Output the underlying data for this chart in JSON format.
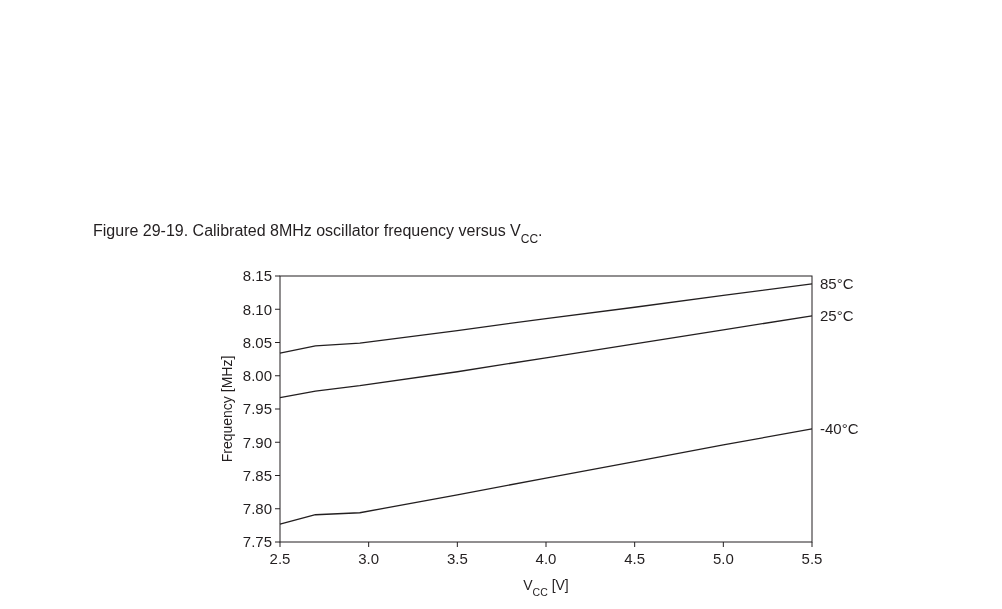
{
  "chart_data": {
    "type": "line",
    "title": "Figure 29-19. Calibrated 8MHz oscillator frequency versus V$_{CC}$.",
    "xlabel": "V$_{CC}$ [V]",
    "ylabel": "Frequency [MHz]",
    "xlim": [
      2.5,
      5.5
    ],
    "xticks": [
      {
        "value": 2.5,
        "label": "2.5"
      },
      {
        "value": 3,
        "label": "3.0"
      },
      {
        "value": 3.5,
        "label": "3.5"
      },
      {
        "value": 4,
        "label": "4.0"
      },
      {
        "value": 4.5,
        "label": "4.5"
      },
      {
        "value": 5,
        "label": "5.0"
      },
      {
        "value": 5.5,
        "label": "5.5"
      }
    ],
    "ylim": [
      7.75,
      8.15
    ],
    "yticks": [
      {
        "value": 7.75,
        "label": "7.75"
      },
      {
        "value": 7.8,
        "label": "7.80"
      },
      {
        "value": 7.85,
        "label": "7.85"
      },
      {
        "value": 7.9,
        "label": "7.90"
      },
      {
        "value": 7.95,
        "label": "7.95"
      },
      {
        "value": 8,
        "label": "8.00"
      },
      {
        "value": 8.05,
        "label": "8.05"
      },
      {
        "value": 8.1,
        "label": "8.10"
      },
      {
        "value": 8.15,
        "label": "8.15"
      }
    ],
    "grid": false,
    "marker": "none",
    "line_style": "solid",
    "x": [
      2.5,
      2.7,
      2.95,
      3.5,
      4,
      4.5,
      5,
      5.5
    ],
    "series": [
      {
        "name": "85°C",
        "color": "#231f20",
        "values": [
          8.034,
          8.045,
          8.049,
          8.068,
          8.086,
          8.103,
          8.121,
          8.138
        ]
      },
      {
        "name": "25°C",
        "color": "#231f20",
        "values": [
          7.967,
          7.977,
          7.985,
          8.006,
          8.027,
          8.048,
          8.069,
          8.09
        ]
      },
      {
        "name": "-40°C",
        "color": "#231f20",
        "values": [
          7.777,
          7.791,
          7.794,
          7.821,
          7.846,
          7.871,
          7.896,
          7.92
        ]
      }
    ]
  }
}
